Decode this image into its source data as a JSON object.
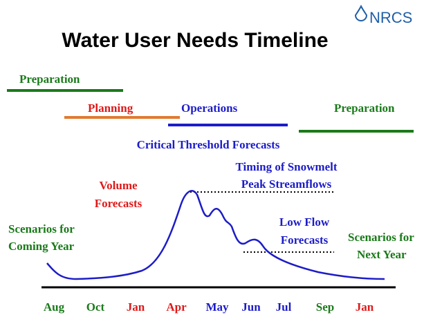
{
  "logo": "NRCS",
  "title": "Water User Needs Timeline",
  "phases": [
    {
      "label": "Preparation"
    },
    {
      "label": "Planning"
    },
    {
      "label": "Operations"
    },
    {
      "label": "Preparation"
    }
  ],
  "annotations": {
    "critical": "Critical Threshold Forecasts",
    "timing": [
      "Timing of Snowmelt",
      "Peak Streamflows"
    ],
    "volume": [
      "Volume",
      "Forecasts"
    ],
    "scenarios_coming": [
      "Scenarios for",
      "Coming Year"
    ],
    "low_flow": [
      "Low Flow",
      "Forecasts"
    ],
    "scenarios_next": [
      "Scenarios for",
      "Next Year"
    ]
  },
  "months": [
    "Aug",
    "Oct",
    "Jan",
    "Apr",
    "May",
    "Jun",
    "Jul",
    "Sep",
    "Jan"
  ]
}
